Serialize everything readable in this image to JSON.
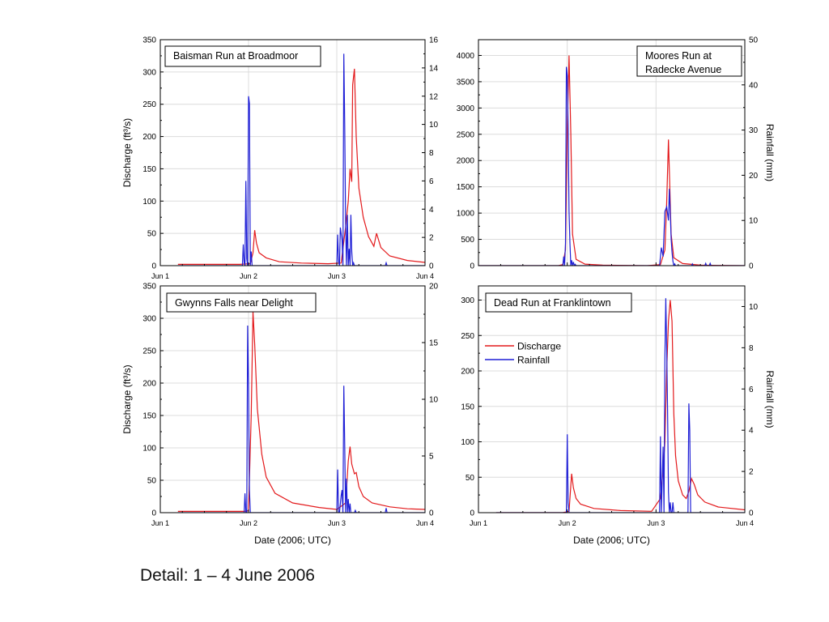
{
  "caption": "Detail: 1 – 4 June 2006",
  "colors": {
    "discharge": "#e31a1c",
    "rainfall": "#1f1fd6",
    "grid": "#dcdcdc",
    "axis": "#000000"
  },
  "chart_data": [
    {
      "type": "line",
      "title": "Baisman Run at Broadmoor",
      "xlabel": "",
      "ylabel": "Discharge (ft³/s)",
      "y2label": "",
      "xticks": [
        "Jun 1",
        "Jun 2",
        "Jun 3",
        "Jun 4"
      ],
      "xlim": [
        0,
        3
      ],
      "ylim": [
        0,
        350
      ],
      "yticks": [
        0,
        50,
        100,
        150,
        200,
        250,
        300,
        350
      ],
      "y2lim": [
        0,
        16
      ],
      "y2ticks": [
        0,
        2,
        4,
        6,
        8,
        10,
        12,
        14,
        16
      ],
      "grid": true,
      "legend": "none",
      "series": [
        {
          "axis": "left",
          "color": "#e31a1c",
          "x": [
            0.2,
            0.9,
            1.02,
            1.05,
            1.07,
            1.09,
            1.12,
            1.2,
            1.35,
            1.6,
            1.9,
            2.05,
            2.1,
            2.13,
            2.15,
            2.17,
            2.18,
            2.2,
            2.22,
            2.25,
            2.3,
            2.36,
            2.42,
            2.45,
            2.5,
            2.6,
            2.8,
            3.0
          ],
          "values": [
            2,
            2,
            3,
            20,
            55,
            35,
            20,
            12,
            6,
            4,
            3,
            4,
            60,
            100,
            150,
            130,
            280,
            305,
            200,
            120,
            75,
            45,
            30,
            50,
            28,
            15,
            8,
            5
          ]
        },
        {
          "axis": "right",
          "color": "#1f1fd6",
          "x": [
            0.2,
            0.93,
            0.94,
            0.95,
            0.96,
            0.97,
            0.98,
            0.99,
            1.0,
            1.01,
            1.02,
            1.03,
            1.04,
            1.05,
            2.0,
            2.01,
            2.02,
            2.03,
            2.04,
            2.06,
            2.07,
            2.08,
            2.09,
            2.1,
            2.11,
            2.12,
            2.13,
            2.14,
            2.15,
            2.16,
            2.17,
            2.18,
            2.19,
            2.2,
            2.21,
            2.22,
            2.23,
            2.24,
            2.25,
            2.55,
            2.56,
            2.57,
            3.0
          ],
          "values": [
            0,
            0,
            1.5,
            0.2,
            0,
            6,
            0.5,
            0,
            12,
            11.5,
            0,
            1,
            0,
            0,
            0,
            2.2,
            0.3,
            0,
            2.7,
            1.8,
            0,
            15,
            10,
            3,
            0,
            3.6,
            0,
            1.2,
            0,
            3.6,
            1,
            0,
            0.2,
            0,
            0,
            0,
            0,
            0,
            0,
            0,
            0.2,
            0,
            0
          ]
        }
      ]
    },
    {
      "type": "line",
      "title": "Moores Run at Radecke Avenue",
      "title_lines": [
        "Moores Run at",
        "Radecke Avenue"
      ],
      "xlabel": "",
      "ylabel": "",
      "y2label": "Rainfall (mm)",
      "xticks": [],
      "xlim": [
        0,
        3
      ],
      "ylim": [
        0,
        4300
      ],
      "yticks": [
        0,
        500,
        1000,
        1500,
        2000,
        2500,
        3000,
        3500,
        4000
      ],
      "y2lim": [
        0,
        50
      ],
      "y2ticks": [
        0,
        10,
        20,
        30,
        40,
        50
      ],
      "grid": true,
      "legend": "none",
      "series": [
        {
          "axis": "left",
          "color": "#e31a1c",
          "x": [
            0,
            0.9,
            0.95,
            0.98,
            1.0,
            1.02,
            1.04,
            1.06,
            1.1,
            1.2,
            1.4,
            1.9,
            2.05,
            2.1,
            2.12,
            2.14,
            2.15,
            2.17,
            2.2,
            2.3,
            2.5,
            2.7,
            3.0
          ],
          "values": [
            0,
            0,
            20,
            300,
            2600,
            4000,
            2500,
            600,
            120,
            30,
            10,
            0,
            20,
            300,
            1200,
            2400,
            1800,
            600,
            150,
            40,
            10,
            5,
            0
          ]
        },
        {
          "axis": "right",
          "color": "#1f1fd6",
          "x": [
            0,
            0.95,
            0.96,
            0.97,
            0.98,
            0.99,
            1.0,
            1.01,
            1.02,
            1.03,
            1.04,
            1.05,
            1.06,
            1.07,
            1.08,
            1.09,
            1.1,
            2.0,
            2.04,
            2.05,
            2.06,
            2.08,
            2.1,
            2.12,
            2.14,
            2.15,
            2.16,
            2.17,
            2.18,
            2.19,
            2.2,
            2.21,
            2.22,
            2.4,
            2.41,
            2.42,
            2.55,
            2.56,
            2.57,
            2.6,
            2.61,
            2.62,
            3.0
          ],
          "values": [
            0,
            0,
            2,
            0,
            5,
            44,
            42,
            30,
            12,
            5,
            0,
            1.2,
            0,
            0.8,
            0,
            0.3,
            0,
            0,
            0,
            2,
            4,
            2,
            12,
            13,
            10,
            17,
            12,
            6,
            3,
            1,
            0,
            0.4,
            0,
            0,
            0.4,
            0,
            0,
            0.5,
            0,
            0,
            0.5,
            0,
            0
          ]
        }
      ]
    },
    {
      "type": "line",
      "title": "Gwynns Falls near Delight",
      "xlabel": "Date (2006; UTC)",
      "ylabel": "Discharge (ft³/s)",
      "y2label": "",
      "xticks": [
        "Jun 1",
        "Jun 2",
        "Jun 3",
        "Jun 4"
      ],
      "xlim": [
        0,
        3
      ],
      "ylim": [
        0,
        350
      ],
      "yticks": [
        0,
        50,
        100,
        150,
        200,
        250,
        300,
        350
      ],
      "y2lim": [
        0,
        20
      ],
      "y2ticks": [
        0,
        5,
        10,
        15,
        20
      ],
      "grid": true,
      "legend": "none",
      "series": [
        {
          "axis": "left",
          "color": "#e31a1c",
          "x": [
            0.2,
            0.95,
            1.0,
            1.03,
            1.05,
            1.07,
            1.1,
            1.15,
            1.2,
            1.3,
            1.5,
            1.8,
            2.0,
            2.1,
            2.13,
            2.15,
            2.17,
            2.2,
            2.22,
            2.25,
            2.3,
            2.4,
            2.6,
            2.8,
            3.0
          ],
          "values": [
            2,
            2,
            3,
            150,
            310,
            260,
            160,
            90,
            55,
            30,
            15,
            8,
            5,
            15,
            80,
            102,
            75,
            60,
            62,
            40,
            25,
            15,
            9,
            6,
            5
          ]
        },
        {
          "axis": "right",
          "color": "#1f1fd6",
          "x": [
            0.2,
            0.95,
            0.96,
            0.97,
            0.98,
            0.99,
            1.0,
            1.01,
            1.02,
            1.03,
            2.0,
            2.01,
            2.02,
            2.03,
            2.05,
            2.06,
            2.07,
            2.08,
            2.09,
            2.1,
            2.11,
            2.12,
            2.13,
            2.14,
            2.15,
            2.16,
            2.2,
            2.21,
            2.22,
            2.5,
            2.55,
            2.56,
            2.57,
            3.0
          ],
          "values": [
            0,
            0,
            1.7,
            0,
            0,
            16.5,
            11.5,
            2,
            0,
            0,
            0,
            3.8,
            0,
            0,
            1.5,
            2,
            0,
            11.2,
            6,
            0,
            3,
            0,
            1.2,
            0,
            0.8,
            0,
            0,
            0.2,
            0,
            0,
            0,
            0.4,
            0,
            0
          ]
        }
      ]
    },
    {
      "type": "line",
      "title": "Dead Run at Franklintown",
      "xlabel": "Date (2006; UTC)",
      "ylabel": "",
      "y2label": "Rainfall (mm)",
      "xticks": [
        "Jun 1",
        "Jun 2",
        "Jun 3",
        "Jun 4"
      ],
      "xlim": [
        0,
        3
      ],
      "ylim": [
        0,
        320
      ],
      "yticks": [
        0,
        50,
        100,
        150,
        200,
        250,
        300
      ],
      "y2lim": [
        0,
        11
      ],
      "y2ticks": [
        0,
        2,
        4,
        6,
        8,
        10
      ],
      "grid": true,
      "legend": "upper-left",
      "legend_entries": [
        "Discharge",
        "Rainfall"
      ],
      "series": [
        {
          "name": "Discharge",
          "axis": "left",
          "color": "#e31a1c",
          "x": [
            0.2,
            0.95,
            1.02,
            1.05,
            1.07,
            1.1,
            1.15,
            1.3,
            1.6,
            1.95,
            2.05,
            2.08,
            2.1,
            2.12,
            2.14,
            2.16,
            2.18,
            2.2,
            2.22,
            2.25,
            2.3,
            2.34,
            2.37,
            2.4,
            2.43,
            2.47,
            2.55,
            2.7,
            3.0
          ],
          "values": [
            0,
            0,
            2,
            55,
            35,
            20,
            12,
            6,
            3,
            2,
            20,
            60,
            100,
            200,
            270,
            300,
            270,
            140,
            80,
            45,
            25,
            20,
            30,
            48,
            40,
            25,
            15,
            8,
            4
          ]
        },
        {
          "axis": "right",
          "color": "#1f1fd6",
          "x": [
            0.2,
            0.98,
            0.99,
            1.0,
            1.01,
            1.02,
            2.0,
            2.04,
            2.05,
            2.06,
            2.08,
            2.09,
            2.1,
            2.11,
            2.12,
            2.13,
            2.14,
            2.15,
            2.16,
            2.17,
            2.18,
            2.19,
            2.2,
            2.21,
            2.22,
            2.36,
            2.37,
            2.38,
            2.39,
            3.0
          ],
          "values": [
            0,
            0,
            0,
            3.8,
            0.5,
            0,
            0,
            0,
            3.7,
            0,
            3.2,
            0,
            7.5,
            10.4,
            8,
            5,
            1,
            0,
            0.5,
            0,
            0,
            0.5,
            0,
            0,
            0,
            0,
            5.3,
            4,
            0,
            0
          ]
        }
      ]
    }
  ]
}
